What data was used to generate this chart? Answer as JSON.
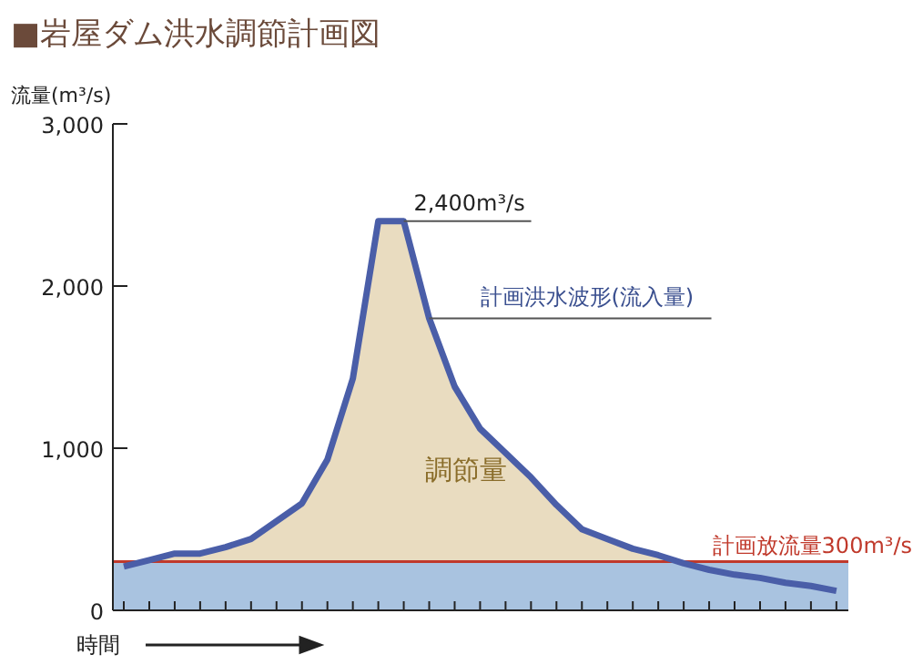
{
  "chart_data": {
    "type": "area",
    "title": "■岩屋ダム洪水調節計画図",
    "ylabel": "流量(m³/s)",
    "xlabel": "時間",
    "annotations": [
      "2,400m³/s",
      "調節量"
    ],
    "categories": [
      null,
      null,
      null,
      null,
      null,
      null,
      null,
      null,
      null,
      null,
      null,
      null,
      null,
      null,
      null,
      null,
      null,
      null,
      null,
      null,
      null,
      null,
      null,
      null,
      null,
      null,
      null,
      null,
      null
    ],
    "series": [
      {
        "name": "計画洪水波形(流入量)",
        "color": "#4a5ea8",
        "values": [
          270,
          310,
          350,
          350,
          390,
          440,
          550,
          660,
          930,
          1430,
          2400,
          2400,
          1800,
          1380,
          1120,
          970,
          820,
          650,
          500,
          440,
          380,
          340,
          290,
          250,
          220,
          200,
          170,
          150,
          120
        ]
      }
    ],
    "ylim": [
      0,
      3000
    ],
    "yticks": [
      0,
      {
        "value": 1000,
        "label": "1,000"
      },
      {
        "value": 2000,
        "label": "2,000"
      },
      {
        "value": 3000,
        "label": "3,000"
      }
    ],
    "tick_labels": "y",
    "bands": [
      {
        "axis": "y",
        "from": 0,
        "to": 300,
        "color": "#a9c3e0"
      }
    ],
    "ref_lines": [
      {
        "axis": "y",
        "value": 300,
        "label": "計画放流量300m³/s",
        "color": "#c0392b"
      }
    ]
  }
}
